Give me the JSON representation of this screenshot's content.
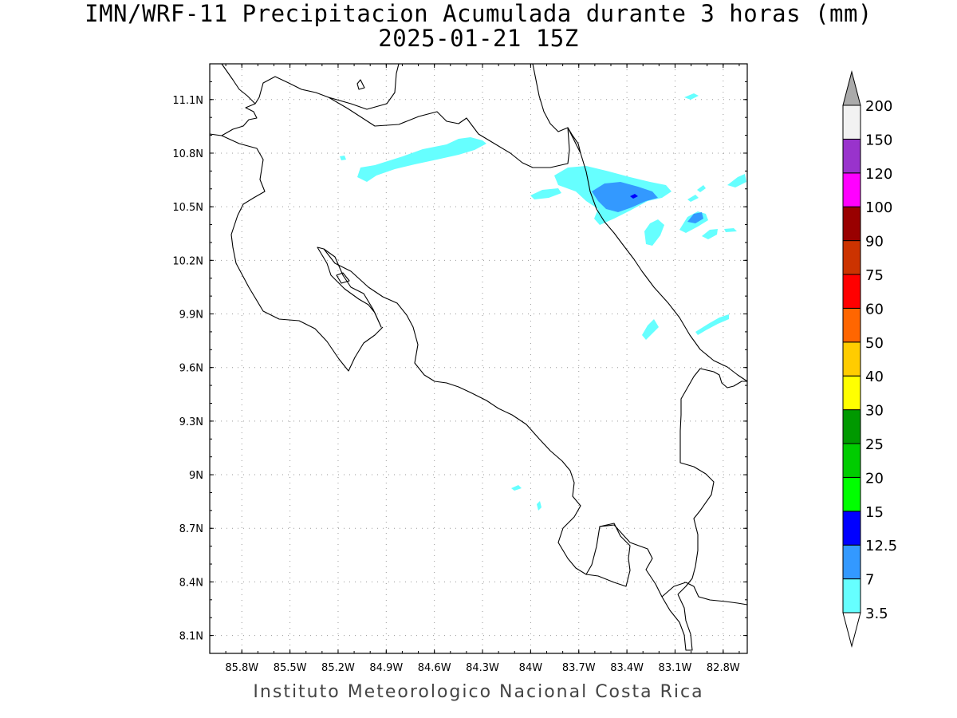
{
  "title": {
    "line1": "IMN/WRF-11 Precipitacion Acumulada durante 3 horas (mm)",
    "line2": "2025-01-21 15Z"
  },
  "credit": "Instituto Meteorologico Nacional Costa Rica",
  "map": {
    "lon_range": [
      -86.0,
      -82.65
    ],
    "lat_range": [
      8.0,
      11.3
    ],
    "lon_ticks": [
      {
        "value": -85.8,
        "label": "85.8W"
      },
      {
        "value": -85.5,
        "label": "85.5W"
      },
      {
        "value": -85.2,
        "label": "85.2W"
      },
      {
        "value": -84.9,
        "label": "84.9W"
      },
      {
        "value": -84.6,
        "label": "84.6W"
      },
      {
        "value": -84.3,
        "label": "84.3W"
      },
      {
        "value": -84.0,
        "label": "84W"
      },
      {
        "value": -83.7,
        "label": "83.7W"
      },
      {
        "value": -83.4,
        "label": "83.4W"
      },
      {
        "value": -83.1,
        "label": "83.1W"
      },
      {
        "value": -82.8,
        "label": "82.8W"
      }
    ],
    "lat_ticks": [
      {
        "value": 11.1,
        "label": "11.1N"
      },
      {
        "value": 10.8,
        "label": "10.8N"
      },
      {
        "value": 10.5,
        "label": "10.5N"
      },
      {
        "value": 10.2,
        "label": "10.2N"
      },
      {
        "value": 9.9,
        "label": "9.9N"
      },
      {
        "value": 9.6,
        "label": "9.6N"
      },
      {
        "value": 9.3,
        "label": "9.3N"
      },
      {
        "value": 9.0,
        "label": "9N"
      },
      {
        "value": 8.7,
        "label": "8.7N"
      },
      {
        "value": 8.4,
        "label": "8.4N"
      },
      {
        "value": 8.1,
        "label": "8.1N"
      }
    ],
    "grid": true
  },
  "colorbar": {
    "levels": [
      {
        "label": "3.5",
        "color": "#66ffff"
      },
      {
        "label": "7",
        "color": "#3399ff"
      },
      {
        "label": "12.5",
        "color": "#0000ff"
      },
      {
        "label": "15",
        "color": "#00ff00"
      },
      {
        "label": "20",
        "color": "#00cc00"
      },
      {
        "label": "25",
        "color": "#009900"
      },
      {
        "label": "30",
        "color": "#ffff00"
      },
      {
        "label": "40",
        "color": "#ffcc00"
      },
      {
        "label": "50",
        "color": "#ff6600"
      },
      {
        "label": "60",
        "color": "#ff0000"
      },
      {
        "label": "75",
        "color": "#cc3300"
      },
      {
        "label": "90",
        "color": "#990000"
      },
      {
        "label": "100",
        "color": "#ff00ff"
      },
      {
        "label": "120",
        "color": "#9933cc"
      },
      {
        "label": "150",
        "color": "#f2f2f2"
      },
      {
        "label": "200",
        "color": "#aaaaaa"
      }
    ],
    "bottom_arrow_color": "#ffffff",
    "top_arrow_color": "#aaaaaa"
  }
}
